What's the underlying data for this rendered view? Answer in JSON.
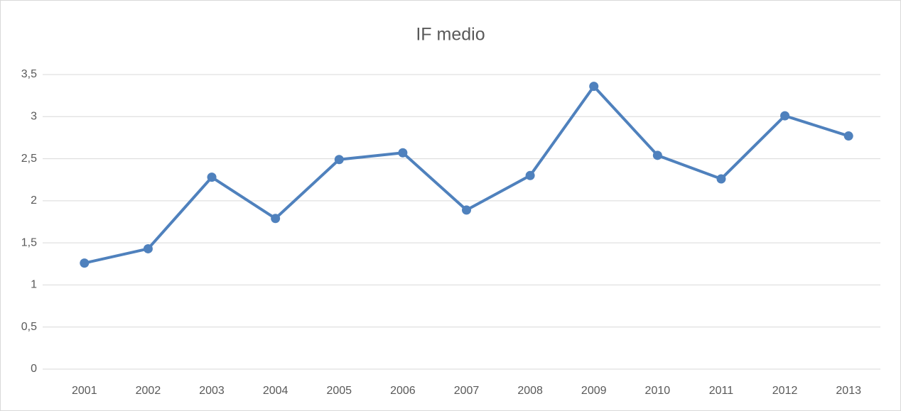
{
  "chart_data": {
    "type": "line",
    "title": "IF medio",
    "categories": [
      "2001",
      "2002",
      "2003",
      "2004",
      "2005",
      "2006",
      "2007",
      "2008",
      "2009",
      "2010",
      "2011",
      "2012",
      "2013"
    ],
    "values": [
      1.26,
      1.43,
      2.28,
      1.79,
      2.49,
      2.57,
      1.89,
      2.3,
      3.36,
      2.54,
      2.26,
      3.01,
      2.77
    ],
    "color": "#4f81bd",
    "ylim": [
      0,
      3.5
    ],
    "yticks": [
      0,
      {
        "value": 0.5,
        "label": "0,5"
      },
      1,
      {
        "value": 1.5,
        "label": "1,5"
      },
      2,
      {
        "value": 2.5,
        "label": "2,5"
      },
      3,
      {
        "value": 3.5,
        "label": "3,5"
      }
    ],
    "grid": true
  }
}
